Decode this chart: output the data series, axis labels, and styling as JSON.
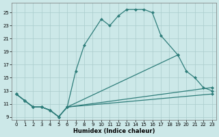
{
  "xlabel": "Humidex (Indice chaleur)",
  "bg_color": "#cce8e8",
  "grid_color": "#aacccc",
  "line_color": "#2e7d7a",
  "xlim": [
    -0.5,
    23.5
  ],
  "ylim": [
    8.5,
    26.5
  ],
  "xticks": [
    0,
    1,
    2,
    3,
    4,
    5,
    6,
    7,
    8,
    9,
    10,
    11,
    12,
    13,
    14,
    15,
    16,
    17,
    18,
    19,
    20,
    21,
    22,
    23
  ],
  "yticks": [
    9,
    11,
    13,
    15,
    17,
    19,
    21,
    23,
    25
  ],
  "s1_x": [
    0,
    1,
    2,
    3,
    4,
    5,
    6,
    7,
    8,
    10,
    11,
    12,
    13,
    14,
    15,
    16,
    17,
    19
  ],
  "s1_y": [
    12.5,
    11.5,
    10.5,
    10.5,
    10.0,
    9.0,
    10.5,
    16.0,
    20.0,
    24.0,
    23.0,
    24.5,
    25.5,
    25.5,
    25.5,
    25.0,
    21.5,
    18.5
  ],
  "s2_x": [
    0,
    1,
    2,
    3,
    4,
    5,
    6,
    19,
    20,
    21,
    22,
    23
  ],
  "s2_y": [
    12.5,
    11.5,
    10.5,
    10.5,
    10.0,
    9.0,
    10.5,
    18.5,
    16.0,
    15.0,
    13.5,
    13.0
  ],
  "s3_x": [
    0,
    1,
    2,
    3,
    4,
    5,
    6,
    23
  ],
  "s3_y": [
    12.5,
    11.5,
    10.5,
    10.5,
    10.0,
    9.0,
    10.5,
    13.5
  ],
  "s4_x": [
    0,
    1,
    2,
    3,
    4,
    5,
    6,
    23
  ],
  "s4_y": [
    12.5,
    11.5,
    10.5,
    10.5,
    10.0,
    9.0,
    10.5,
    12.5
  ]
}
